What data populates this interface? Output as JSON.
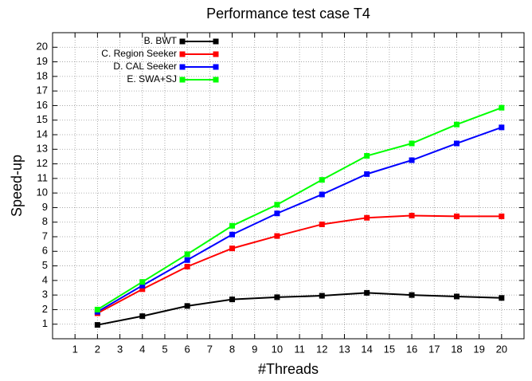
{
  "chart_data": {
    "type": "line",
    "title": "Performance test case T4",
    "xlabel": "#Threads",
    "ylabel": "Speed-up",
    "x": [
      2,
      4,
      6,
      8,
      10,
      12,
      14,
      16,
      18,
      20
    ],
    "series": [
      {
        "name": "B. BWT",
        "color": "#000000",
        "values": [
          0.95,
          1.55,
          2.25,
          2.7,
          2.85,
          2.95,
          3.15,
          3.0,
          2.9,
          2.8
        ]
      },
      {
        "name": "C. Region Seeker",
        "color": "#ff0000",
        "values": [
          1.75,
          3.4,
          4.95,
          6.2,
          7.05,
          7.85,
          8.3,
          8.45,
          8.4,
          8.4
        ]
      },
      {
        "name": "D. CAL Seeker",
        "color": "#0000ff",
        "values": [
          1.85,
          3.65,
          5.4,
          7.15,
          8.6,
          9.9,
          11.3,
          12.25,
          13.4,
          14.5
        ]
      },
      {
        "name": "E. SWA+SJ",
        "color": "#00ff00",
        "values": [
          2.0,
          3.9,
          5.8,
          7.75,
          9.2,
          10.9,
          12.55,
          13.4,
          14.7,
          15.85
        ]
      }
    ],
    "xlim": [
      0,
      21
    ],
    "xticks": [
      1,
      2,
      3,
      4,
      5,
      6,
      7,
      8,
      9,
      10,
      11,
      12,
      13,
      14,
      15,
      16,
      17,
      18,
      19,
      20
    ],
    "ylim": [
      0,
      21
    ],
    "yticks": [
      1,
      2,
      3,
      4,
      5,
      6,
      7,
      8,
      9,
      10,
      11,
      12,
      13,
      14,
      15,
      16,
      17,
      18,
      19,
      20
    ],
    "grid": true,
    "legend": "top-left"
  }
}
